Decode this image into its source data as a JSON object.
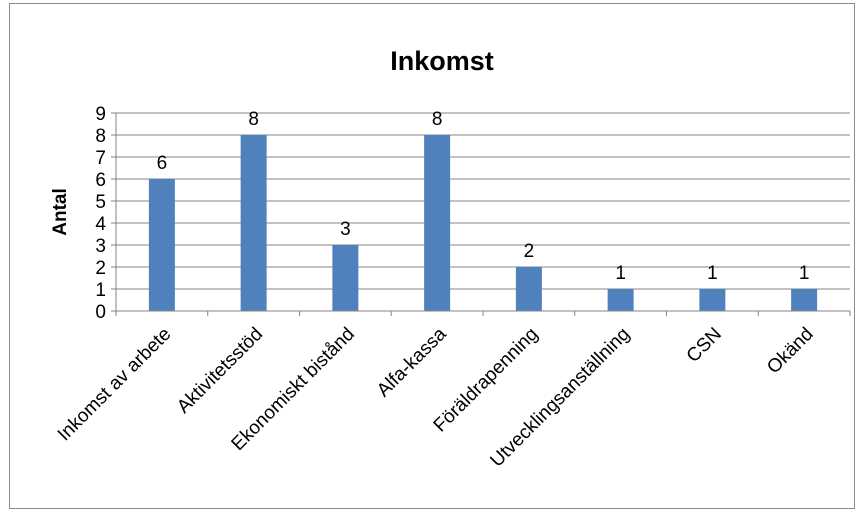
{
  "chart_data": {
    "type": "bar",
    "title": "Inkomst",
    "xlabel": "",
    "ylabel": "Antal",
    "categories": [
      "Inkomst av arbete",
      "Aktivitetsstöd",
      "Ekonomiskt bistånd",
      "Alfa-kassa",
      "Föräldrapenning",
      "Utvecklingsanställning",
      "CSN",
      "Okänd"
    ],
    "values": [
      6,
      8,
      3,
      8,
      2,
      1,
      1,
      1
    ],
    "ylim": [
      0,
      9
    ],
    "yticks": [
      0,
      1,
      2,
      3,
      4,
      5,
      6,
      7,
      8,
      9
    ],
    "grid": true,
    "data_labels": true,
    "legend": "none",
    "bar_color": "#4F81BD"
  }
}
